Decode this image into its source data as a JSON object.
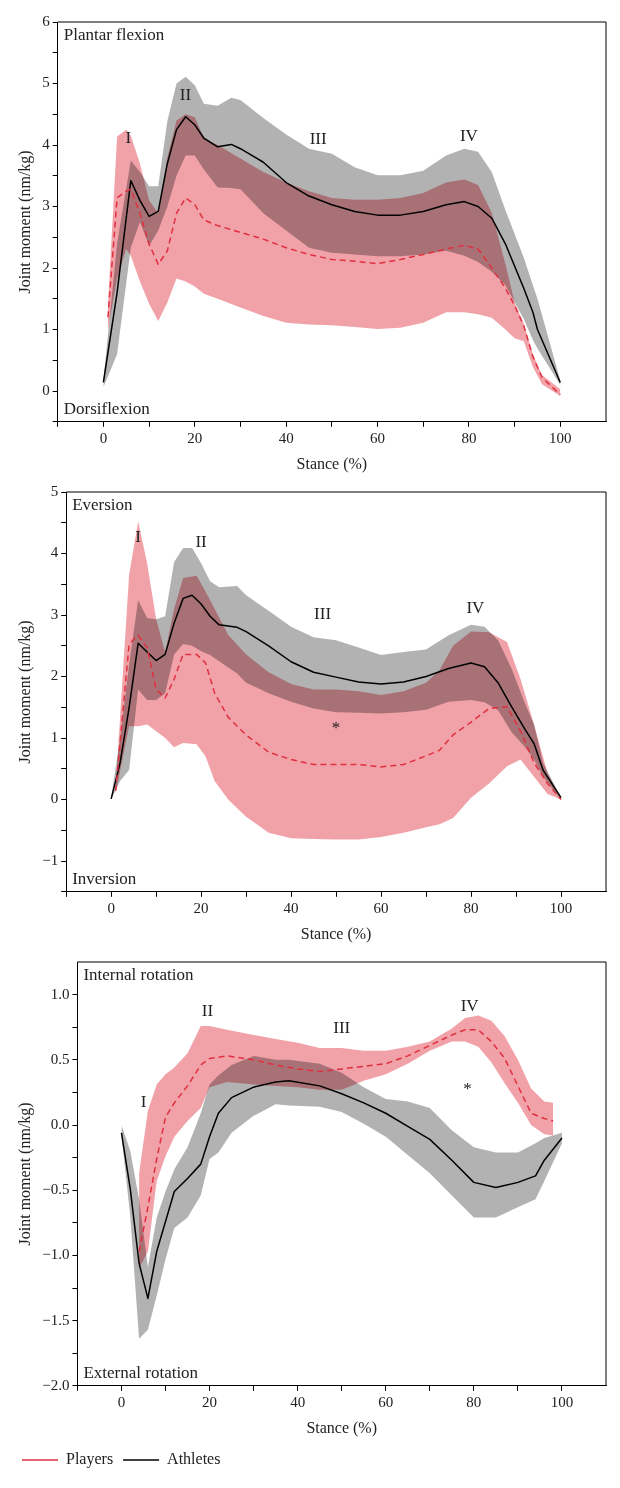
{
  "chart_data": [
    {
      "type": "line",
      "xlabel": "Stance (%)",
      "ylabel": "Joint moment (nm/kg)",
      "xlim": [
        -10,
        110
      ],
      "ylim": [
        -0.5,
        6
      ],
      "xticks": [
        {
          "value": -10,
          "label": null
        },
        0,
        {
          "value": 10,
          "label": null
        },
        20,
        {
          "value": 30,
          "label": null
        },
        40,
        {
          "value": 50,
          "label": null
        },
        60,
        {
          "value": 70,
          "label": null
        },
        80,
        {
          "value": 90,
          "label": null
        },
        100
      ],
      "yticks": [
        {
          "value": -0.5,
          "label": null
        },
        0,
        {
          "value": 0.5,
          "label": null
        },
        1,
        {
          "value": 1.5,
          "label": null
        },
        2,
        {
          "value": 2.5,
          "label": null
        },
        3,
        {
          "value": 3.5,
          "label": null
        },
        4,
        {
          "value": 4.5,
          "label": null
        },
        5,
        {
          "value": 5.5,
          "label": null
        },
        6
      ],
      "series": [
        {
          "color": "#e03040",
          "line_style": "dashed",
          "x": [
            1,
            3,
            5,
            6,
            8,
            10,
            12,
            14,
            16,
            18,
            20,
            22,
            25,
            30,
            35,
            40,
            45,
            50,
            55,
            60,
            65,
            70,
            75,
            79,
            82,
            85,
            88,
            90,
            92,
            94,
            96,
            100
          ],
          "values": [
            1.2,
            3.14,
            3.25,
            3.28,
            2.89,
            2.39,
            2.06,
            2.28,
            2.89,
            3.14,
            3.03,
            2.78,
            2.69,
            2.58,
            2.47,
            2.33,
            2.22,
            2.14,
            2.11,
            2.07,
            2.14,
            2.22,
            2.31,
            2.37,
            2.31,
            2.0,
            1.67,
            1.39,
            1.06,
            0.56,
            0.22,
            -0.06
          ],
          "lower": [
            1.0,
            1.83,
            2.31,
            2.2,
            1.78,
            1.42,
            1.14,
            1.44,
            1.83,
            1.78,
            1.7,
            1.58,
            1.5,
            1.36,
            1.22,
            1.11,
            1.08,
            1.07,
            1.04,
            1.01,
            1.03,
            1.11,
            1.28,
            1.28,
            1.25,
            1.19,
            1.0,
            0.86,
            0.81,
            0.39,
            0.11,
            -0.08
          ],
          "upper": [
            1.4,
            4.14,
            4.25,
            4.15,
            3.7,
            3.1,
            2.89,
            3.8,
            4.4,
            4.5,
            4.45,
            4.11,
            4.0,
            3.78,
            3.56,
            3.39,
            3.25,
            3.14,
            3.11,
            3.11,
            3.14,
            3.22,
            3.39,
            3.44,
            3.35,
            2.9,
            2.06,
            1.44,
            1.1,
            0.6,
            0.26,
            0.03
          ]
        },
        {
          "color": "#000000",
          "line_style": "solid",
          "x": [
            0,
            3,
            6,
            8,
            10,
            12,
            14,
            16,
            18,
            20,
            22,
            25,
            28,
            30,
            35,
            40,
            45,
            50,
            55,
            60,
            65,
            70,
            75,
            79,
            82,
            85,
            88,
            92,
            94,
            95,
            100
          ],
          "values": [
            0.14,
            1.6,
            3.42,
            3.1,
            2.84,
            2.92,
            3.7,
            4.25,
            4.46,
            4.33,
            4.11,
            3.97,
            4.01,
            3.94,
            3.72,
            3.39,
            3.17,
            3.03,
            2.92,
            2.86,
            2.86,
            2.92,
            3.03,
            3.08,
            3.0,
            2.81,
            2.39,
            1.67,
            1.28,
            1.0,
            0.14
          ],
          "lower": [
            0.06,
            0.6,
            2.33,
            2.75,
            2.36,
            2.61,
            3.0,
            3.5,
            3.83,
            3.83,
            3.6,
            3.31,
            3.3,
            3.28,
            2.89,
            2.61,
            2.33,
            2.25,
            2.22,
            2.19,
            2.19,
            2.22,
            2.28,
            2.2,
            2.1,
            1.94,
            1.72,
            1.17,
            0.83,
            0.69,
            0.1
          ],
          "upper": [
            0.17,
            2.4,
            3.75,
            3.56,
            3.33,
            3.33,
            4.39,
            5.0,
            5.11,
            4.97,
            4.67,
            4.64,
            4.77,
            4.73,
            4.44,
            4.17,
            3.94,
            3.86,
            3.64,
            3.51,
            3.51,
            3.58,
            3.83,
            3.94,
            3.89,
            3.56,
            2.94,
            2.17,
            1.72,
            1.5,
            0.17
          ]
        }
      ],
      "annotations": [
        "Plantar flexion",
        "Dorsiflexion",
        "I",
        "II",
        "III",
        "IV"
      ]
    },
    {
      "type": "line",
      "xlabel": "Stance (%)",
      "ylabel": "Joint moment (nm/kg)",
      "xlim": [
        -10,
        110
      ],
      "ylim": [
        -1.5,
        5
      ],
      "xticks": [
        {
          "value": -10,
          "label": null
        },
        0,
        {
          "value": 10,
          "label": null
        },
        20,
        {
          "value": 30,
          "label": null
        },
        40,
        {
          "value": 50,
          "label": null
        },
        60,
        {
          "value": 70,
          "label": null
        },
        80,
        {
          "value": 90,
          "label": null
        },
        100
      ],
      "yticks": [
        {
          "value": -1.5,
          "label": null
        },
        {
          "value": -1,
          "label": "−1"
        },
        {
          "value": -0.5,
          "label": null
        },
        0,
        {
          "value": 0.5,
          "label": null
        },
        1,
        {
          "value": 1.5,
          "label": null
        },
        2,
        {
          "value": 2.5,
          "label": null
        },
        3,
        {
          "value": 3.5,
          "label": null
        },
        4,
        {
          "value": 4.5,
          "label": null
        },
        5
      ],
      "series": [
        {
          "color": "#e03040",
          "line_style": "dashed",
          "x": [
            1,
            4,
            6,
            8,
            10,
            12,
            14,
            16,
            19,
            21,
            23,
            26,
            30,
            35,
            40,
            45,
            50,
            55,
            60,
            65,
            70,
            73,
            76,
            80,
            84,
            88,
            91,
            94,
            97,
            100
          ],
          "values": [
            0.14,
            2.53,
            2.67,
            2.47,
            1.79,
            1.65,
            1.96,
            2.36,
            2.36,
            2.22,
            1.73,
            1.34,
            1.05,
            0.77,
            0.65,
            0.57,
            0.57,
            0.57,
            0.53,
            0.57,
            0.71,
            0.8,
            1.05,
            1.26,
            1.48,
            1.51,
            1.11,
            0.6,
            0.26,
            0.0
          ],
          "lower": [
            0.1,
            1.19,
            1.19,
            1.22,
            1.11,
            1.0,
            0.85,
            0.92,
            0.9,
            0.7,
            0.3,
            0.0,
            -0.28,
            -0.54,
            -0.63,
            -0.64,
            -0.65,
            -0.65,
            -0.61,
            -0.54,
            -0.45,
            -0.4,
            -0.3,
            0.03,
            0.26,
            0.54,
            0.65,
            0.37,
            0.09,
            0.0
          ],
          "upper": [
            0.2,
            3.66,
            4.52,
            3.84,
            2.93,
            2.4,
            3.1,
            3.6,
            3.64,
            3.38,
            3.1,
            2.68,
            2.36,
            2.07,
            1.88,
            1.79,
            1.79,
            1.76,
            1.7,
            1.76,
            1.9,
            2.1,
            2.5,
            2.73,
            2.72,
            2.56,
            1.96,
            1.22,
            0.43,
            0.0
          ]
        },
        {
          "color": "#000000",
          "line_style": "solid",
          "x": [
            0,
            2,
            4,
            6,
            8,
            10,
            12,
            14,
            16,
            18,
            20,
            22,
            24,
            28,
            30,
            35,
            40,
            45,
            50,
            55,
            60,
            65,
            70,
            75,
            80,
            83,
            86,
            89,
            92,
            94,
            96,
            100
          ],
          "values": [
            0.01,
            0.6,
            1.5,
            2.54,
            2.4,
            2.26,
            2.36,
            2.87,
            3.27,
            3.32,
            3.18,
            2.98,
            2.84,
            2.8,
            2.73,
            2.5,
            2.24,
            2.07,
            1.99,
            1.91,
            1.88,
            1.91,
            2.0,
            2.13,
            2.22,
            2.16,
            1.9,
            1.51,
            1.14,
            0.91,
            0.48,
            0.03
          ],
          "lower": [
            0.0,
            0.3,
            0.48,
            1.79,
            1.62,
            1.62,
            1.73,
            2.36,
            2.53,
            2.5,
            2.41,
            2.35,
            2.25,
            2.05,
            1.9,
            1.73,
            1.59,
            1.48,
            1.42,
            1.41,
            1.4,
            1.42,
            1.46,
            1.59,
            1.62,
            1.58,
            1.45,
            1.1,
            0.85,
            0.65,
            0.37,
            0.0
          ],
          "upper": [
            0.03,
            1.0,
            2.2,
            3.24,
            2.95,
            2.93,
            2.98,
            3.86,
            4.09,
            4.09,
            3.84,
            3.55,
            3.45,
            3.47,
            3.32,
            3.07,
            2.81,
            2.64,
            2.59,
            2.47,
            2.35,
            2.4,
            2.44,
            2.67,
            2.84,
            2.81,
            2.59,
            2.13,
            1.56,
            1.22,
            0.6,
            0.03
          ]
        }
      ],
      "annotations": [
        "Eversion",
        "Inversion",
        "I",
        "II",
        "III",
        "IV",
        "*"
      ]
    },
    {
      "type": "line",
      "xlabel": "Stance (%)",
      "ylabel": "Joint moment (nm/kg)",
      "xlim": [
        -10,
        110
      ],
      "ylim": [
        -2,
        1.25
      ],
      "legend": "bottom left",
      "xticks": [
        {
          "value": -10,
          "label": null
        },
        0,
        {
          "value": 10,
          "label": null
        },
        20,
        {
          "value": 30,
          "label": null
        },
        40,
        {
          "value": 50,
          "label": null
        },
        60,
        {
          "value": 70,
          "label": null
        },
        80,
        {
          "value": 90,
          "label": null
        },
        100
      ],
      "yticks": [
        {
          "value": -2,
          "label": "−2.0"
        },
        {
          "value": -1.75,
          "label": null
        },
        {
          "value": -1.5,
          "label": "−1.5"
        },
        {
          "value": -1.25,
          "label": null
        },
        {
          "value": -1,
          "label": "−1.0"
        },
        {
          "value": -0.75,
          "label": null
        },
        {
          "value": -0.5,
          "label": "−0.5"
        },
        {
          "value": -0.25,
          "label": null
        },
        {
          "value": 0,
          "label": "0.0"
        },
        {
          "value": 0.25,
          "label": null
        },
        {
          "value": 0.5,
          "label": "0.5"
        },
        {
          "value": 0.75,
          "label": null
        },
        {
          "value": 1,
          "label": "1.0"
        }
      ],
      "series": [
        {
          "name": "Players",
          "color": "#e03040",
          "line_style": "dashed",
          "x": [
            4,
            6,
            8,
            10,
            12,
            15,
            18,
            20,
            24,
            30,
            35,
            40,
            45,
            50,
            55,
            60,
            65,
            70,
            75,
            78,
            81,
            84,
            87,
            90,
            93,
            96,
            98
          ],
          "values": [
            -0.97,
            -0.63,
            -0.26,
            0.06,
            0.17,
            0.3,
            0.46,
            0.51,
            0.53,
            0.5,
            0.46,
            0.43,
            0.41,
            0.43,
            0.45,
            0.47,
            0.53,
            0.61,
            0.69,
            0.73,
            0.73,
            0.64,
            0.51,
            0.3,
            0.09,
            0.05,
            0.03
          ],
          "lower": [
            -1.1,
            -0.97,
            -0.43,
            -0.24,
            -0.09,
            0.03,
            0.13,
            0.29,
            0.33,
            0.31,
            0.3,
            0.29,
            0.27,
            0.27,
            0.34,
            0.39,
            0.47,
            0.57,
            0.64,
            0.64,
            0.6,
            0.48,
            0.32,
            0.17,
            0.0,
            -0.07,
            -0.08
          ],
          "upper": [
            -0.37,
            0.11,
            0.31,
            0.39,
            0.44,
            0.55,
            0.76,
            0.76,
            0.73,
            0.69,
            0.66,
            0.63,
            0.59,
            0.59,
            0.57,
            0.57,
            0.6,
            0.64,
            0.74,
            0.82,
            0.84,
            0.8,
            0.68,
            0.5,
            0.28,
            0.18,
            0.17
          ]
        },
        {
          "name": "Athletes",
          "color": "#000000",
          "line_style": "solid",
          "x": [
            0,
            2,
            4,
            6,
            8,
            10,
            12,
            15,
            18,
            20,
            22,
            25,
            30,
            35,
            38,
            45,
            50,
            55,
            60,
            65,
            70,
            75,
            80,
            85,
            90,
            94,
            96,
            100
          ],
          "values": [
            -0.06,
            -0.49,
            -1.06,
            -1.33,
            -0.97,
            -0.74,
            -0.51,
            -0.41,
            -0.3,
            -0.09,
            0.09,
            0.21,
            0.29,
            0.33,
            0.34,
            0.3,
            0.24,
            0.17,
            0.09,
            -0.01,
            -0.11,
            -0.27,
            -0.44,
            -0.48,
            -0.44,
            -0.39,
            -0.27,
            -0.1
          ],
          "lower": [
            -0.08,
            -0.7,
            -1.64,
            -1.57,
            -1.31,
            -1.03,
            -0.79,
            -0.71,
            -0.54,
            -0.26,
            -0.21,
            -0.06,
            0.07,
            0.16,
            0.15,
            0.14,
            0.1,
            0.01,
            -0.09,
            -0.23,
            -0.37,
            -0.54,
            -0.71,
            -0.71,
            -0.63,
            -0.57,
            -0.43,
            -0.14
          ],
          "upper": [
            0.0,
            -0.2,
            -0.57,
            -1.09,
            -0.71,
            -0.51,
            -0.34,
            -0.17,
            0.09,
            0.31,
            0.38,
            0.46,
            0.53,
            0.5,
            0.5,
            0.47,
            0.4,
            0.29,
            0.2,
            0.18,
            0.13,
            -0.04,
            -0.17,
            -0.21,
            -0.21,
            -0.14,
            -0.1,
            -0.06
          ]
        }
      ],
      "annotations": [
        "Internal rotation",
        "External rotation",
        "I",
        "II",
        "III",
        "IV",
        "*"
      ]
    }
  ]
}
